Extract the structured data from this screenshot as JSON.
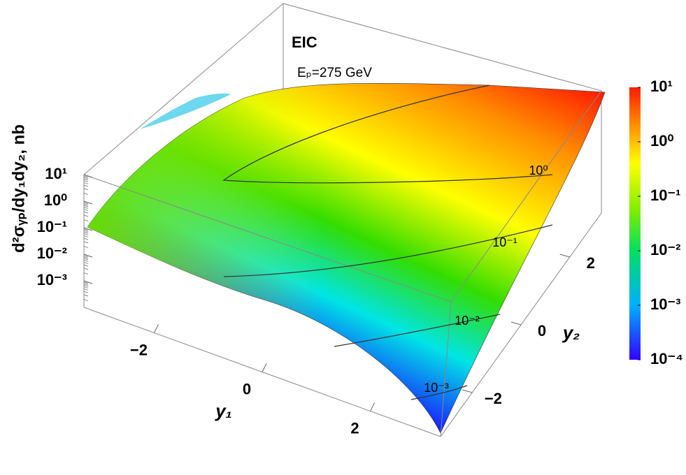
{
  "chart_data": {
    "type": "surface3d",
    "annotations": [
      "EIC",
      "Eₚ=275 GeV"
    ],
    "xlabel": "y₁",
    "ylabel": "y₂",
    "zlabel": "d²σᵧₚ/dy₁dy₂, nb",
    "xlim": [
      -3.3,
      3.3
    ],
    "xticks": [
      {
        "value": -2,
        "label": "−2"
      },
      0,
      2
    ],
    "ylim": [
      -3.3,
      3.3
    ],
    "yticks": [
      {
        "value": -2,
        "label": "−2"
      },
      0,
      2
    ],
    "zlim": [
      0.0001,
      10
    ],
    "zscale": "log",
    "zticks": [
      {
        "value": 10,
        "label": "10¹"
      },
      {
        "value": 1,
        "label": "10⁰"
      },
      {
        "value": 0.1,
        "label": "10⁻¹"
      },
      {
        "value": 0.01,
        "label": "10⁻²"
      },
      {
        "value": 0.001,
        "label": "10⁻³"
      }
    ],
    "contours": [
      {
        "value": 1,
        "label": "10⁰"
      },
      {
        "value": 0.1,
        "label": "10⁻¹"
      },
      {
        "value": 0.01,
        "label": "10⁻²"
      },
      {
        "value": 0.001,
        "label": "10⁻³"
      }
    ],
    "colorbar": {
      "lim": [
        0.0001,
        10
      ],
      "ticks": [
        {
          "value": 10,
          "label": "10¹"
        },
        {
          "value": 1,
          "label": "10⁰"
        },
        {
          "value": 0.1,
          "label": "10⁻¹"
        },
        {
          "value": 0.01,
          "label": "10⁻²"
        },
        {
          "value": 0.001,
          "label": "10⁻³"
        },
        {
          "value": 0.0001,
          "label": "10⁻⁴"
        }
      ]
    }
  }
}
